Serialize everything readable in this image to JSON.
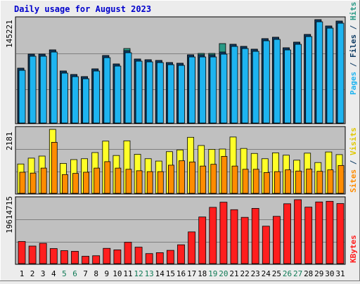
{
  "title": "Daily usage for August 2023",
  "colors": {
    "background": "#ececec",
    "panel": "#c0c0c0",
    "pages": "#0f3c64",
    "files": "#1eb4f0",
    "hits": "#2a9a86",
    "visits": "#ffff28",
    "sites": "#ff8c00",
    "kbytes": "#ff1e1e",
    "weekend_label": "#0f7a55",
    "title": "#0000cc"
  },
  "chart_data": [
    {
      "type": "bar",
      "panel": "top",
      "y_label": "145221",
      "y_max": 147000,
      "legend": [
        "Pages",
        "Files",
        "Hits"
      ],
      "series": [
        {
          "name": "Pages",
          "values": [
            78000,
            98000,
            98000,
            104000,
            74000,
            69000,
            66000,
            77000,
            96000,
            84000,
            103000,
            91000,
            90000,
            89000,
            86000,
            85000,
            97000,
            97000,
            97000,
            101000,
            112000,
            109000,
            105000,
            120000,
            122000,
            107000,
            115000,
            126000,
            147000,
            138000,
            145000
          ]
        },
        {
          "name": "Files",
          "values": [
            77000,
            97000,
            97000,
            103000,
            73000,
            68000,
            65000,
            76000,
            95000,
            83000,
            102000,
            90000,
            89000,
            88000,
            85000,
            84000,
            96000,
            96000,
            96000,
            100000,
            111000,
            108000,
            104000,
            119000,
            121000,
            106000,
            114000,
            125000,
            146000,
            137000,
            144000
          ]
        },
        {
          "name": "Hits",
          "values": [
            78000,
            98000,
            98000,
            104000,
            74000,
            69000,
            66000,
            77000,
            96000,
            84000,
            106000,
            91000,
            90000,
            89000,
            86000,
            85000,
            97000,
            99000,
            99000,
            113000,
            112000,
            109000,
            105000,
            120000,
            122000,
            107000,
            115000,
            126000,
            147000,
            138000,
            145000
          ]
        }
      ]
    },
    {
      "type": "bar",
      "panel": "middle",
      "y_label": "2181",
      "y_max": 2181,
      "legend": [
        "Sites",
        "Visits"
      ],
      "series": [
        {
          "name": "Visits",
          "values": [
            1000,
            1200,
            1270,
            2180,
            1020,
            1150,
            1180,
            1390,
            1780,
            1290,
            1790,
            1330,
            1180,
            1100,
            1420,
            1480,
            1910,
            1630,
            1500,
            1510,
            1920,
            1530,
            1360,
            1180,
            1380,
            1300,
            1130,
            1370,
            1050,
            1410,
            1320
          ]
        },
        {
          "name": "Sites",
          "values": [
            720,
            690,
            860,
            1740,
            640,
            680,
            720,
            860,
            1080,
            860,
            820,
            770,
            740,
            740,
            960,
            1110,
            1070,
            930,
            990,
            1260,
            930,
            820,
            820,
            710,
            740,
            800,
            760,
            830,
            750,
            800,
            950
          ]
        }
      ]
    },
    {
      "type": "bar",
      "panel": "bottom",
      "y_label": "19614715",
      "y_max": 19614715,
      "legend": [
        "KBytes"
      ],
      "series": [
        {
          "name": "KBytes",
          "values": [
            6790000,
            5390000,
            6240000,
            4620000,
            3980000,
            3780000,
            2260000,
            2420000,
            4690000,
            4220000,
            6560000,
            5050000,
            3080000,
            3360000,
            4070000,
            5780000,
            9730000,
            14300000,
            17260000,
            18840000,
            16540000,
            14190000,
            16940000,
            11480000,
            14500000,
            18360000,
            19610000,
            17330000,
            18910000,
            19110000,
            18420000
          ]
        }
      ]
    }
  ],
  "x_labels": [
    "1",
    "2",
    "3",
    "4",
    "5",
    "6",
    "7",
    "8",
    "9",
    "10",
    "11",
    "12",
    "13",
    "14",
    "15",
    "16",
    "17",
    "18",
    "19",
    "20",
    "21",
    "22",
    "23",
    "24",
    "25",
    "26",
    "27",
    "28",
    "29",
    "30",
    "31"
  ],
  "weekend_days": [
    5,
    6,
    12,
    13,
    19,
    20,
    26,
    27
  ]
}
